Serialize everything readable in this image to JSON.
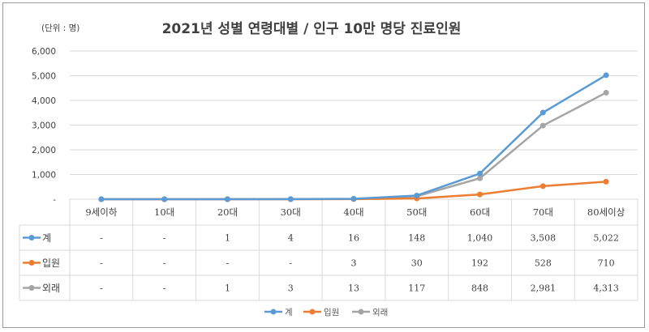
{
  "colors": {
    "total": "#5b9bd5",
    "inpatient": "#ed7d31",
    "outpatient": "#a5a5a5",
    "grid": "#d9d9d9",
    "text": "#404040"
  },
  "chart_data": {
    "type": "line",
    "title": "2021년 성별 연령대별 / 인구 10만 명당 진료인원",
    "unit": "(단위 : 명)",
    "categories": [
      "9세이하",
      "10대",
      "20대",
      "30대",
      "40대",
      "50대",
      "60대",
      "70대",
      "80세이상"
    ],
    "ylim": [
      0,
      6000
    ],
    "yticks": [
      "-",
      "1,000",
      "2,000",
      "3,000",
      "4,000",
      "5,000",
      "6,000"
    ],
    "series": [
      {
        "name": "계",
        "values": [
          0,
          0,
          1,
          4,
          16,
          148,
          1040,
          3508,
          5022
        ],
        "labels": [
          "-",
          "-",
          "1",
          "4",
          "16",
          "148",
          "1,040",
          "3,508",
          "5,022"
        ]
      },
      {
        "name": "입원",
        "values": [
          0,
          0,
          0,
          0,
          3,
          30,
          192,
          528,
          710
        ],
        "labels": [
          "-",
          "-",
          "-",
          "-",
          "3",
          "30",
          "192",
          "528",
          "710"
        ]
      },
      {
        "name": "외래",
        "values": [
          0,
          0,
          1,
          3,
          13,
          117,
          848,
          2981,
          4313
        ],
        "labels": [
          "-",
          "-",
          "1",
          "3",
          "13",
          "117",
          "848",
          "2,981",
          "4,313"
        ]
      }
    ],
    "legend": "bottom",
    "data_table": true
  }
}
